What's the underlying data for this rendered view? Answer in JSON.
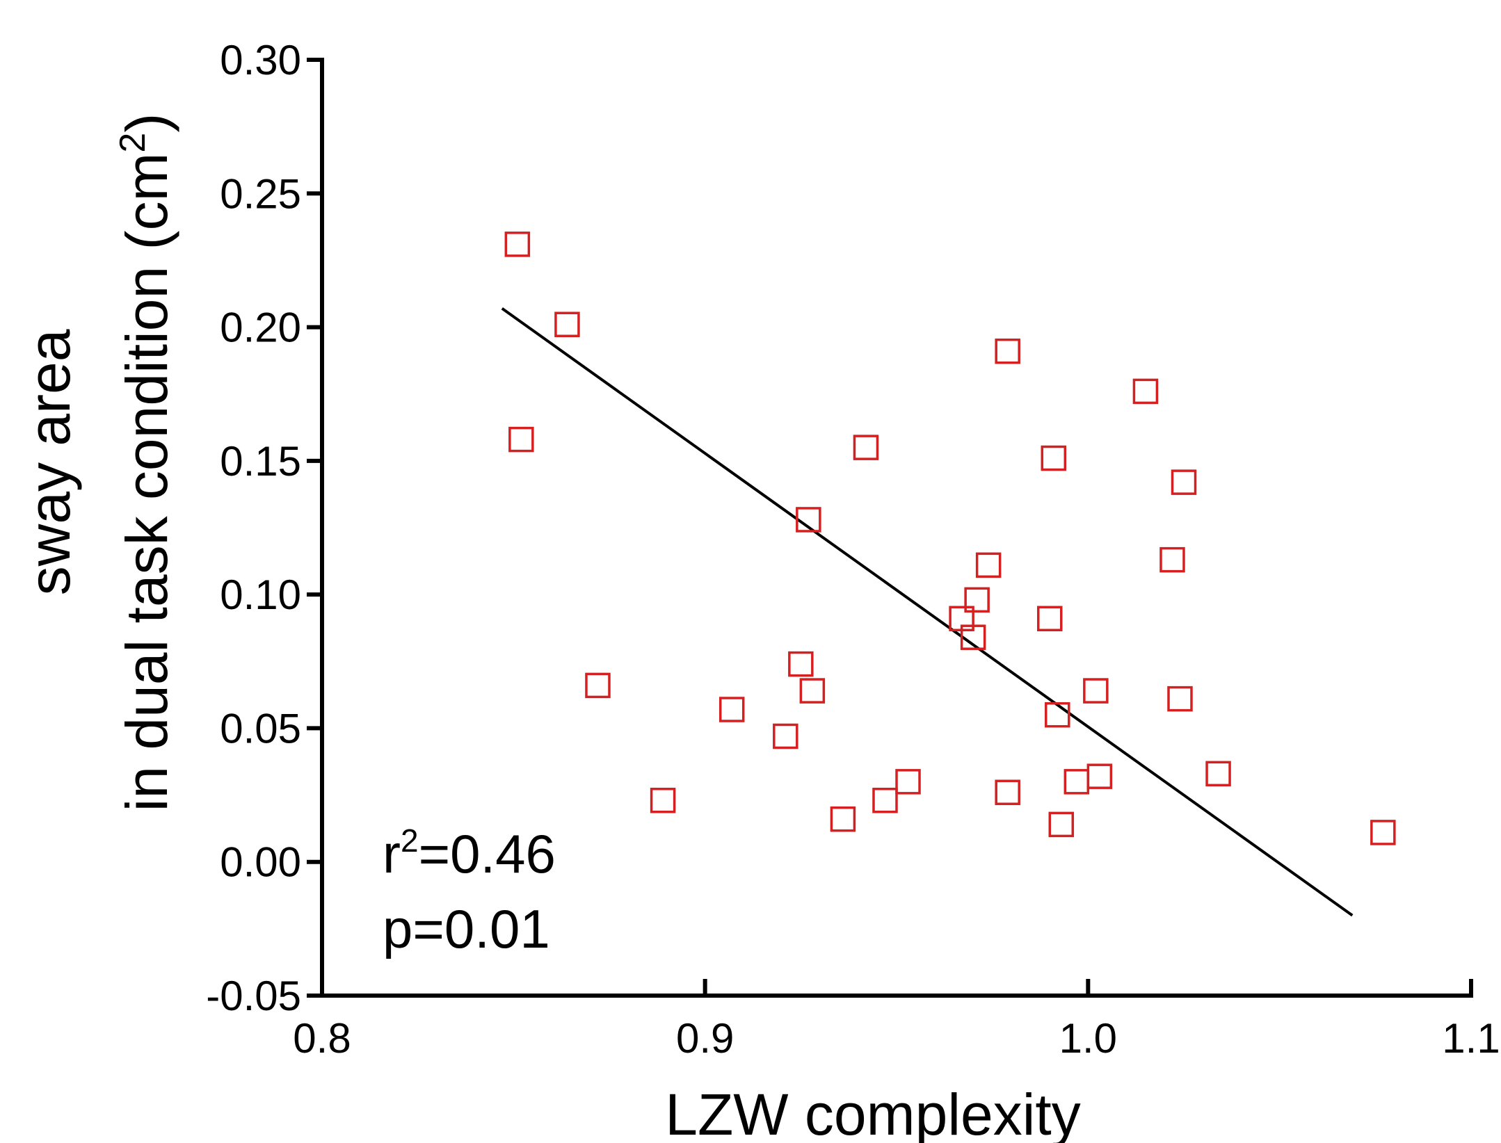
{
  "chart_data": {
    "type": "scatter",
    "xlabel": "LZW complexity",
    "ylabel_line1": "sway area",
    "ylabel_line2_prefix": "in dual task condition (cm",
    "ylabel_superscript": "2",
    "ylabel_line2_suffix": ")",
    "xlim": [
      0.8,
      1.1
    ],
    "ylim": [
      -0.05,
      0.3
    ],
    "x_ticks": [
      0.8,
      0.9,
      1.0,
      1.1
    ],
    "x_tick_labels": [
      "0.8",
      "0.9",
      "1.0",
      "1.1"
    ],
    "y_ticks": [
      -0.05,
      0.0,
      0.05,
      0.1,
      0.15,
      0.2,
      0.25,
      0.3
    ],
    "y_tick_labels": [
      "-0.05",
      "0.00",
      "0.05",
      "0.10",
      "0.15",
      "0.20",
      "0.25",
      "0.30"
    ],
    "marker": "open-square",
    "marker_color": "#d42020",
    "line_color": "#000000",
    "points": [
      {
        "x": 0.851,
        "y": 0.231
      },
      {
        "x": 0.864,
        "y": 0.201
      },
      {
        "x": 0.852,
        "y": 0.158
      },
      {
        "x": 0.872,
        "y": 0.066
      },
      {
        "x": 0.889,
        "y": 0.023
      },
      {
        "x": 0.907,
        "y": 0.057
      },
      {
        "x": 0.921,
        "y": 0.047
      },
      {
        "x": 0.925,
        "y": 0.074
      },
      {
        "x": 0.927,
        "y": 0.128
      },
      {
        "x": 0.928,
        "y": 0.064
      },
      {
        "x": 0.936,
        "y": 0.016
      },
      {
        "x": 0.942,
        "y": 0.155
      },
      {
        "x": 0.947,
        "y": 0.023
      },
      {
        "x": 0.953,
        "y": 0.03
      },
      {
        "x": 0.967,
        "y": 0.091
      },
      {
        "x": 0.97,
        "y": 0.084
      },
      {
        "x": 0.971,
        "y": 0.098
      },
      {
        "x": 0.974,
        "y": 0.111
      },
      {
        "x": 0.979,
        "y": 0.191
      },
      {
        "x": 0.979,
        "y": 0.026
      },
      {
        "x": 0.99,
        "y": 0.091
      },
      {
        "x": 0.991,
        "y": 0.151
      },
      {
        "x": 0.992,
        "y": 0.055
      },
      {
        "x": 0.993,
        "y": 0.014
      },
      {
        "x": 0.997,
        "y": 0.03
      },
      {
        "x": 1.002,
        "y": 0.064
      },
      {
        "x": 1.003,
        "y": 0.032
      },
      {
        "x": 1.015,
        "y": 0.176
      },
      {
        "x": 1.022,
        "y": 0.113
      },
      {
        "x": 1.024,
        "y": 0.061
      },
      {
        "x": 1.025,
        "y": 0.142
      },
      {
        "x": 1.034,
        "y": 0.033
      },
      {
        "x": 1.077,
        "y": 0.011
      }
    ],
    "fit_line": {
      "x": [
        0.847,
        1.069
      ],
      "y": [
        0.207,
        -0.02
      ]
    },
    "annotations": {
      "r_prefix": "r",
      "r_superscript": "2",
      "r_value": "=0.46",
      "p_text": "p=0.01"
    }
  }
}
